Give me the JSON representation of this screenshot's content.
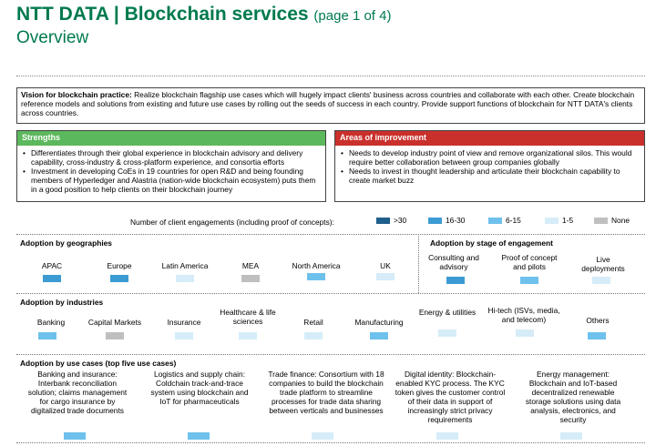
{
  "header": {
    "title": "NTT DATA | Blockchain services",
    "page": "(page 1 of 4)",
    "subtitle": "Overview"
  },
  "vision": {
    "label": "Vision for blockchain practice:",
    "text": " Realize blockchain flagship use cases which will hugely impact clients' business across countries and collaborate with each other. Create blockchain reference models and solutions from existing and future use cases by rolling out the seeds of success in each country. Provide support functions of blockchain for NTT DATA's clients across countries."
  },
  "strengths": {
    "title": "Strengths",
    "items": [
      "Differentiates through their global experience in blockchain advisory and delivery capability, cross-industry & cross-platform experience, and consortia efforts",
      "Investment in developing CoEs in 19 countries for open R&D and being founding members of Hyperledger and Alastria (nation-wide blockchain ecosystem) puts them in a good position to help clients on their blockchain journey"
    ]
  },
  "improvement": {
    "title": "Areas of improvement",
    "items": [
      "Needs to develop industry point of view and remove organizational silos. This would require better collaboration between group companies globally",
      "Needs to invest in thought leadership and articulate their blockchain capability to create market buzz"
    ]
  },
  "legend": {
    "title": "Number of client engagements (including proof of concepts):",
    "items": [
      {
        "label": ">30",
        "color": "#1f5f8b"
      },
      {
        "label": "16-30",
        "color": "#3d9bd3"
      },
      {
        "label": "6-15",
        "color": "#6ec1ec"
      },
      {
        "label": "1-5",
        "color": "#d6ecf8"
      },
      {
        "label": "None",
        "color": "#bfbfbf"
      }
    ]
  },
  "geographies": {
    "title": "Adoption by geographies",
    "items": [
      {
        "label": "APAC",
        "level": "16-30"
      },
      {
        "label": "Europe",
        "level": "16-30"
      },
      {
        "label": "Latin America",
        "level": "1-5"
      },
      {
        "label": "MEA",
        "level": "None"
      },
      {
        "label": "North America",
        "level": "6-15"
      },
      {
        "label": "UK",
        "level": "1-5"
      }
    ]
  },
  "stage": {
    "title": "Adoption by stage of engagement",
    "items": [
      {
        "label": "Consulting and advisory",
        "level": "16-30"
      },
      {
        "label": "Proof of concept and pilots",
        "level": "6-15"
      },
      {
        "label": "Live deployments",
        "level": "1-5"
      }
    ]
  },
  "industries": {
    "title": "Adoption by industries",
    "items": [
      {
        "label": "Banking",
        "level": "6-15"
      },
      {
        "label": "Capital Markets",
        "level": "None"
      },
      {
        "label": "Insurance",
        "level": "1-5"
      },
      {
        "label": "Healthcare & life sciences",
        "level": "1-5"
      },
      {
        "label": "Retail",
        "level": "1-5"
      },
      {
        "label": "Manufacturing",
        "level": "6-15"
      },
      {
        "label": "Energy & utilities",
        "level": "1-5"
      },
      {
        "label": "Hi-tech (ISVs, media, and telecom)",
        "level": "1-5"
      },
      {
        "label": "Others",
        "level": "6-15"
      }
    ]
  },
  "use_cases": {
    "title": "Adoption by use cases (top five use cases)",
    "items": [
      {
        "label": "Banking and insurance: Interbank reconciliation solution; claims management for cargo insurance by digitalized trade documents",
        "level": "6-15"
      },
      {
        "label": "Logistics and supply chain: Coldchain track-and-trace system using blockchain and IoT for pharmaceuticals",
        "level": "6-15"
      },
      {
        "label": "Trade finance: Consortium with 18 companies to build the blockchain trade platform to streamline processes for trade data sharing between verticals and businesses",
        "level": "1-5"
      },
      {
        "label": "Digital identity: Blockchain-enabled KYC process. The KYC token gives the customer control of their data in support of increasingly strict privacy requirements",
        "level": "1-5"
      },
      {
        "label": "Energy management: Blockchain and IoT-based decentralized renewable storage solutions using data analysis, electronics, and security",
        "level": "1-5"
      }
    ]
  }
}
